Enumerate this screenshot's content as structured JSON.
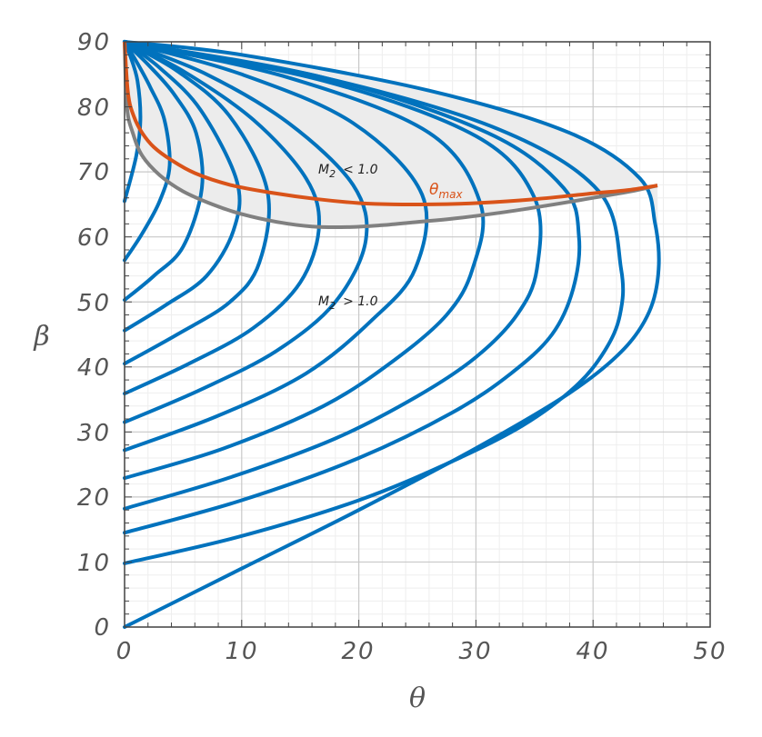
{
  "chart_data": {
    "type": "line",
    "xlabel": "θ",
    "ylabel": "β",
    "xlim": [
      0,
      50
    ],
    "ylim": [
      0,
      90
    ],
    "xticks": [
      "0",
      "10",
      "20",
      "30",
      "40",
      "50"
    ],
    "yticks": [
      "0",
      "10",
      "20",
      "30",
      "40",
      "50",
      "60",
      "70",
      "80",
      "90"
    ],
    "grid": true,
    "minor_grid": true,
    "subsonic_region_fill": "#ececec",
    "colors": {
      "series": "#0072bd",
      "theta_max": "#d95319",
      "sonic": "#808080",
      "grid_major": "#c8c8c8",
      "grid_minor": "#eeeeee",
      "axes": "#444444"
    },
    "annotations": {
      "subsonic": {
        "base": "M",
        "sub": "2",
        "rel": "< 1.0",
        "x": 16.5,
        "y": 69.5
      },
      "supersonic": {
        "base": "M",
        "sub": "2",
        "rel": "> 1.0",
        "x": 16.5,
        "y": 49.2
      },
      "theta_max": {
        "base": "θ",
        "sub": "max",
        "x": 26.0,
        "y": 66.6
      }
    },
    "series": [
      {
        "x": [
          0,
          1.0,
          1.35,
          1.1,
          0.45,
          0
        ],
        "y": [
          65.5,
          72.5,
          78.0,
          84.0,
          88.0,
          90
        ]
      },
      {
        "x": [
          0,
          1.5,
          3.0,
          3.85,
          3.4,
          2.2,
          1.0,
          0
        ],
        "y": [
          56.4,
          60.5,
          65.5,
          71.0,
          78.0,
          83.0,
          87.0,
          90
        ]
      },
      {
        "x": [
          0,
          2.5,
          5.0,
          6.6,
          6.1,
          4.2,
          2.0,
          0
        ],
        "y": [
          50.3,
          54.0,
          58.5,
          67.5,
          76.0,
          82.0,
          86.5,
          90
        ]
      },
      {
        "x": [
          0,
          3.5,
          7.0,
          9.3,
          9.6,
          6.5,
          3.0,
          0
        ],
        "y": [
          45.6,
          49.5,
          54.0,
          61.0,
          68.5,
          79.5,
          86.0,
          90
        ]
      },
      {
        "x": [
          0,
          4.5,
          9.0,
          11.5,
          12.2,
          9.0,
          4.5,
          0
        ],
        "y": [
          40.5,
          45.0,
          50.0,
          56.0,
          67.0,
          78.5,
          85.5,
          90
        ]
      },
      {
        "x": [
          0,
          5.5,
          11.0,
          15.0,
          16.6,
          15.5,
          11.0,
          5.0,
          0
        ],
        "y": [
          35.9,
          40.5,
          46.0,
          53.0,
          61.5,
          69.0,
          78.0,
          85.5,
          90
        ]
      },
      {
        "x": [
          0,
          6.5,
          13.0,
          18.0,
          20.6,
          19.5,
          14.0,
          7.0,
          0
        ],
        "y": [
          31.5,
          36.5,
          42.5,
          50.0,
          59.5,
          68.0,
          77.5,
          85.0,
          90
        ]
      },
      {
        "x": [
          0,
          8.0,
          15.5,
          21.0,
          24.8,
          25.4,
          19.5,
          10.0,
          0
        ],
        "y": [
          27.2,
          32.5,
          39.0,
          47.0,
          55.0,
          66.5,
          77.5,
          85.0,
          90
        ]
      },
      {
        "x": [
          0,
          8.5,
          17.0,
          23.0,
          27.5,
          29.7,
          30.4,
          26.0,
          14.0,
          0
        ],
        "y": [
          22.9,
          27.5,
          34.0,
          41.0,
          48.0,
          55.0,
          65.0,
          76.0,
          84.5,
          90
        ]
      },
      {
        "x": [
          0,
          9.0,
          18.0,
          25.0,
          30.0,
          33.5,
          35.2,
          35.0,
          30.0,
          17.0,
          0
        ],
        "y": [
          18.2,
          23.0,
          29.0,
          35.5,
          41.5,
          48.0,
          55.0,
          66.0,
          75.5,
          84.0,
          90
        ]
      },
      {
        "x": [
          0,
          10.0,
          20.0,
          28.0,
          33.0,
          36.5,
          38.3,
          38.8,
          37.5,
          31.0,
          17.0,
          0
        ],
        "y": [
          14.5,
          19.5,
          26.0,
          33.0,
          39.0,
          45.0,
          52.0,
          60.0,
          67.5,
          76.0,
          84.5,
          90
        ]
      },
      {
        "x": [
          0,
          10.0,
          20.0,
          28.0,
          34.0,
          38.5,
          41.0,
          42.3,
          42.4,
          40.5,
          32.0,
          17.0,
          0
        ],
        "y": [
          9.8,
          14.0,
          19.5,
          25.5,
          31.0,
          37.0,
          42.5,
          48.0,
          55.0,
          67.0,
          76.5,
          84.5,
          90
        ]
      },
      {
        "x": [
          0,
          10.0,
          20.0,
          30.0,
          38.0,
          42.5,
          44.8,
          45.6,
          45.3,
          44.0,
          38.0,
          26.0,
          10.0,
          0
        ],
        "y": [
          0,
          9.0,
          18.0,
          27.5,
          36.0,
          42.5,
          48.5,
          55.0,
          62.0,
          69.0,
          76.0,
          82.5,
          88.0,
          90
        ]
      }
    ],
    "theta_max_curve": {
      "name": "θmax",
      "x": [
        0,
        0.3,
        0.8,
        1.5,
        2.5,
        4.0,
        6.0,
        9.0,
        12.5,
        16.5,
        20.0,
        23.0,
        26.0,
        30.0,
        35.0,
        40.0,
        43.0,
        45.5
      ],
      "y": [
        90,
        82.0,
        78.5,
        76.0,
        73.8,
        71.8,
        69.8,
        68.0,
        66.8,
        65.8,
        65.2,
        65.0,
        65.0,
        65.2,
        65.8,
        66.7,
        67.2,
        67.9
      ]
    },
    "sonic_curve": {
      "name": "M2 = 1",
      "x": [
        0,
        0.2,
        0.7,
        1.5,
        3.0,
        5.0,
        7.5,
        10.0,
        13.0,
        16.0,
        19.0,
        22.0,
        25.0,
        28.0,
        32.0,
        36.0,
        40.0,
        43.5,
        45.5
      ],
      "y": [
        90,
        80.0,
        76.0,
        72.5,
        69.5,
        67.0,
        65.0,
        63.5,
        62.3,
        61.6,
        61.5,
        61.8,
        62.3,
        62.8,
        63.7,
        64.8,
        66.0,
        67.1,
        67.9
      ]
    }
  }
}
